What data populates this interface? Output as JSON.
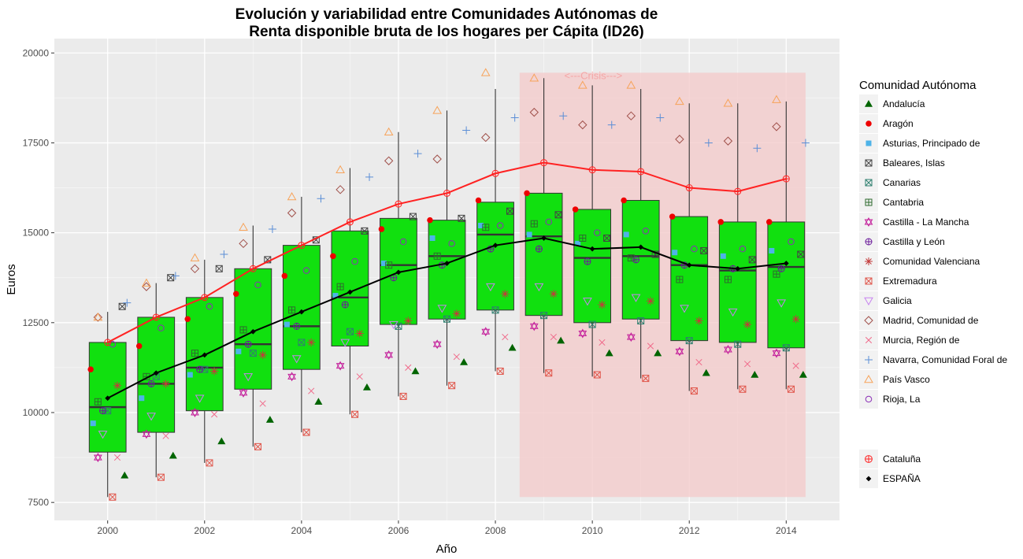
{
  "chart_data": {
    "type": "box",
    "title_lines": [
      "Evolución y variabilidad entre Comunidades Autónomas de",
      "Renta disponible bruta de los hogares per Cápita (ID26)"
    ],
    "xlabel": "Año",
    "ylabel": "Euros",
    "xlim": [
      1998.9,
      2015.1
    ],
    "ylim": [
      7000,
      20400
    ],
    "x_ticks": [
      2000,
      2002,
      2004,
      2006,
      2008,
      2010,
      2012,
      2014
    ],
    "y_ticks": [
      7500,
      10000,
      12500,
      15000,
      17500,
      20000
    ],
    "x_tick_labels": [
      "2000",
      "2002",
      "2004",
      "2006",
      "2008",
      "2010",
      "2012",
      "2014"
    ],
    "y_tick_labels": [
      "7500",
      "10000",
      "12500",
      "15000",
      "17500",
      "20000"
    ],
    "grid": true,
    "legend_position": "right",
    "crisis": {
      "x0": 2008.5,
      "x1": 2014.4,
      "y0": 7650,
      "y1": 19450,
      "label": "<---Crisis--->",
      "color": "#f4cccc"
    },
    "box_color": "#11e00f",
    "boxes": [
      {
        "year": 2000,
        "whisker_low": 7650,
        "q1": 8900,
        "median": 10150,
        "q3": 11950,
        "whisker_high": 12800
      },
      {
        "year": 2001,
        "whisker_low": 8200,
        "q1": 9450,
        "median": 10800,
        "q3": 12650,
        "whisker_high": 13600
      },
      {
        "year": 2002,
        "whisker_low": 8600,
        "q1": 10050,
        "median": 11250,
        "q3": 13200,
        "whisker_high": 14250
      },
      {
        "year": 2003,
        "whisker_low": 9050,
        "q1": 10650,
        "median": 11900,
        "q3": 14000,
        "whisker_high": 15200
      },
      {
        "year": 2004,
        "whisker_low": 9450,
        "q1": 11200,
        "median": 12400,
        "q3": 14650,
        "whisker_high": 16000
      },
      {
        "year": 2005,
        "whisker_low": 9950,
        "q1": 11850,
        "median": 13200,
        "q3": 15050,
        "whisker_high": 16800
      },
      {
        "year": 2006,
        "whisker_low": 10450,
        "q1": 12450,
        "median": 14100,
        "q3": 15400,
        "whisker_high": 17800
      },
      {
        "year": 2007,
        "whisker_low": 10750,
        "q1": 12600,
        "median": 14350,
        "q3": 15350,
        "whisker_high": 18400
      },
      {
        "year": 2008,
        "whisker_low": 11150,
        "q1": 12850,
        "median": 14950,
        "q3": 15850,
        "whisker_high": 19000
      },
      {
        "year": 2009,
        "whisker_low": 11100,
        "q1": 12700,
        "median": 14900,
        "q3": 16100,
        "whisker_high": 19300
      },
      {
        "year": 2010,
        "whisker_low": 11000,
        "q1": 12500,
        "median": 14300,
        "q3": 15650,
        "whisker_high": 19100
      },
      {
        "year": 2011,
        "whisker_low": 10950,
        "q1": 12600,
        "median": 14350,
        "q3": 15900,
        "whisker_high": 19000
      },
      {
        "year": 2012,
        "whisker_low": 10600,
        "q1": 12000,
        "median": 14100,
        "q3": 15450,
        "whisker_high": 18600
      },
      {
        "year": 2013,
        "whisker_low": 10650,
        "q1": 11950,
        "median": 13950,
        "q3": 15300,
        "whisker_high": 18600
      },
      {
        "year": 2014,
        "whisker_low": 10650,
        "q1": 11800,
        "median": 14050,
        "q3": 15300,
        "whisker_high": 18650
      }
    ],
    "line_series": [
      {
        "name": "Cataluña",
        "color": "#ff2222",
        "marker": "circle-plus",
        "x": [
          2000,
          2001,
          2002,
          2003,
          2004,
          2005,
          2006,
          2007,
          2008,
          2009,
          2010,
          2011,
          2012,
          2013,
          2014
        ],
        "y": [
          11950,
          12650,
          13200,
          14000,
          14650,
          15300,
          15800,
          16100,
          16650,
          16950,
          16750,
          16700,
          16250,
          16150,
          16500
        ]
      },
      {
        "name": "ESPAÑA",
        "color": "#000000",
        "marker": "diamond",
        "x": [
          2000,
          2001,
          2002,
          2003,
          2004,
          2005,
          2006,
          2007,
          2008,
          2009,
          2010,
          2011,
          2012,
          2013,
          2014
        ],
        "y": [
          10400,
          11100,
          11600,
          12250,
          12800,
          13350,
          13900,
          14150,
          14650,
          14850,
          14550,
          14600,
          14100,
          14000,
          14150
        ]
      }
    ],
    "region_series": [
      {
        "name": "Andalucía",
        "color": "#006400",
        "marker": "triangle",
        "offset": 0.35,
        "y": [
          8250,
          8800,
          9200,
          9800,
          10300,
          10700,
          11150,
          11400,
          11800,
          12000,
          11650,
          11650,
          11100,
          11050,
          11050
        ]
      },
      {
        "name": "Aragón",
        "color": "#ee0000",
        "marker": "circle-filled",
        "offset": -0.35,
        "y": [
          11200,
          11850,
          12600,
          13300,
          13800,
          14350,
          15100,
          15350,
          15900,
          16100,
          15650,
          15900,
          15450,
          15300,
          15300
        ]
      },
      {
        "name": "Asturias, Principado de",
        "color": "#4eb3e8",
        "marker": "square-filled",
        "offset": -0.3,
        "y": [
          9700,
          10400,
          11050,
          11700,
          12450,
          13250,
          14150,
          14850,
          15200,
          14950,
          14700,
          14950,
          14450,
          14350,
          14500
        ]
      },
      {
        "name": "Baleares, Islas",
        "color": "#444444",
        "marker": "square-x",
        "offset": 0.3,
        "y": [
          12950,
          13750,
          14000,
          14250,
          14800,
          15050,
          15450,
          15400,
          15600,
          15500,
          14850,
          14400,
          14500,
          14250,
          14400
        ]
      },
      {
        "name": "Canarias",
        "color": "#2f7f6f",
        "marker": "square-x",
        "offset": 0.0,
        "y": [
          10050,
          11000,
          11200,
          11650,
          11950,
          12250,
          12400,
          12600,
          12850,
          12700,
          12450,
          12550,
          12000,
          11900,
          11800
        ]
      },
      {
        "name": "Cantabria",
        "color": "#2e6b2e",
        "marker": "square-plus",
        "offset": -0.2,
        "y": [
          10300,
          11000,
          11650,
          12300,
          12850,
          13500,
          14100,
          14350,
          15150,
          15250,
          14850,
          14300,
          13700,
          13700,
          13850
        ]
      },
      {
        "name": "Castilla - La Mancha",
        "color": "#c41f9b",
        "marker": "star",
        "offset": -0.2,
        "y": [
          8750,
          9400,
          10000,
          10550,
          11000,
          11300,
          11600,
          11900,
          12250,
          12400,
          12200,
          12100,
          11700,
          11750,
          11650
        ]
      },
      {
        "name": "Castilla y León",
        "color": "#6a1a9a",
        "marker": "circle-plus",
        "offset": -0.1,
        "y": [
          10050,
          10800,
          11200,
          11900,
          12400,
          13000,
          13750,
          14100,
          14550,
          14550,
          14200,
          14250,
          14100,
          14000,
          14000
        ]
      },
      {
        "name": "Comunidad Valenciana",
        "color": "#c33a3a",
        "marker": "asterisk",
        "offset": 0.2,
        "y": [
          10750,
          10800,
          11150,
          11600,
          11950,
          12200,
          12550,
          12750,
          13300,
          13300,
          13000,
          13100,
          12550,
          12450,
          12600
        ]
      },
      {
        "name": "Extremadura",
        "color": "#e0554a",
        "marker": "square-x",
        "offset": 0.1,
        "y": [
          7650,
          8200,
          8600,
          9050,
          9450,
          9950,
          10450,
          10750,
          11150,
          11100,
          11050,
          10950,
          10600,
          10650,
          10650
        ]
      },
      {
        "name": "Galicia",
        "color": "#c782f0",
        "marker": "triangle-down",
        "offset": -0.1,
        "y": [
          9400,
          9900,
          10400,
          11000,
          11500,
          11950,
          12450,
          12900,
          13500,
          13500,
          13100,
          13200,
          12900,
          12800,
          13050
        ]
      },
      {
        "name": "Madrid, Comunidad de",
        "color": "#a0504a",
        "marker": "diamond-open",
        "offset": -0.2,
        "y": [
          12650,
          13500,
          14000,
          14700,
          15550,
          16200,
          17000,
          17050,
          17650,
          18350,
          18000,
          18250,
          17600,
          17550,
          17950
        ]
      },
      {
        "name": "Murcia, Región de",
        "color": "#f06a8a",
        "marker": "x",
        "offset": 0.2,
        "y": [
          8750,
          9350,
          9950,
          10250,
          10600,
          11000,
          11250,
          11550,
          12100,
          12100,
          11950,
          11850,
          11400,
          11350,
          11300
        ]
      },
      {
        "name": "Navarra, Comunidad Foral de",
        "color": "#5b8ed6",
        "marker": "plus",
        "offset": 0.4,
        "y": [
          13050,
          13800,
          14400,
          15100,
          15950,
          16550,
          17200,
          17850,
          18200,
          18250,
          18000,
          18200,
          17500,
          17350,
          17500
        ]
      },
      {
        "name": "País Vasco",
        "color": "#f7a35a",
        "marker": "triangle-open",
        "offset": -0.2,
        "y": [
          12650,
          13600,
          14300,
          15150,
          16000,
          16750,
          17800,
          18400,
          19450,
          19300,
          19100,
          19100,
          18650,
          18600,
          18700
        ]
      },
      {
        "name": "Rioja, La",
        "color": "#8b2fb7",
        "marker": "circle-open",
        "offset": 0.1,
        "y": [
          11900,
          12350,
          12950,
          13550,
          13950,
          14200,
          14750,
          14700,
          15200,
          15300,
          15000,
          15050,
          14550,
          14550,
          14750
        ]
      }
    ],
    "legend": {
      "title": "Comunidad Autónoma",
      "entries": [
        "Andalucía",
        "Aragón",
        "Asturias, Principado de",
        "Baleares, Islas",
        "Canarias",
        "Cantabria",
        "Castilla - La Mancha",
        "Castilla y León",
        "Comunidad Valenciana",
        "Extremadura",
        "Galicia",
        "Madrid, Comunidad de",
        "Murcia, Región de",
        "Navarra, Comunidad Foral de",
        "País Vasco",
        "Rioja, La"
      ],
      "second_entries": [
        "Cataluña",
        "ESPAÑA"
      ]
    }
  }
}
